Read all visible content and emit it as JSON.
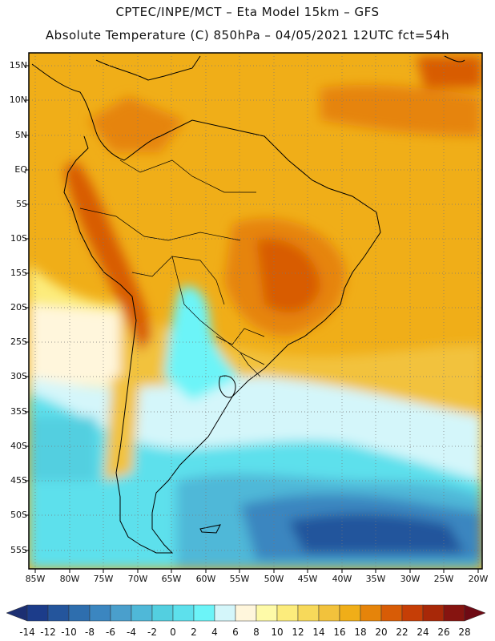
{
  "header": {
    "line1": "CPTEC/INPE/MCT –  Eta Model 15km – GFS",
    "line2": "Absolute Temperature (C) 850hPa – 04/05/2021 12UTC fct=54h"
  },
  "axes": {
    "lat_labels": [
      "15N",
      "10N",
      "5N",
      "EQ",
      "5S",
      "10S",
      "15S",
      "20S",
      "25S",
      "30S",
      "35S",
      "40S",
      "45S",
      "50S",
      "55S"
    ],
    "lon_labels": [
      "85W",
      "80W",
      "75W",
      "70W",
      "65W",
      "60W",
      "55W",
      "50W",
      "45W",
      "40W",
      "35W",
      "30W",
      "25W",
      "20W"
    ]
  },
  "colorbar": {
    "labels": [
      "-14",
      "-12",
      "-10",
      "-8",
      "-6",
      "-4",
      "-2",
      "0",
      "2",
      "4",
      "6",
      "8",
      "10",
      "12",
      "14",
      "16",
      "18",
      "20",
      "22",
      "24",
      "26",
      "28"
    ],
    "colors": [
      "#1c3c8a",
      "#24559c",
      "#2e6eae",
      "#3b86c0",
      "#4a9fcc",
      "#4fb8d8",
      "#53cfe0",
      "#5de0ec",
      "#6cf4f8",
      "#d4f6fa",
      "#fff6dc",
      "#fefaa8",
      "#fcec7c",
      "#f7d95a",
      "#f2c23c",
      "#f0ae18",
      "#e6840a",
      "#d85c06",
      "#c63e06",
      "#a82808",
      "#861410"
    ],
    "under_color": "#1c2f72",
    "over_color": "#6e0a14"
  }
}
